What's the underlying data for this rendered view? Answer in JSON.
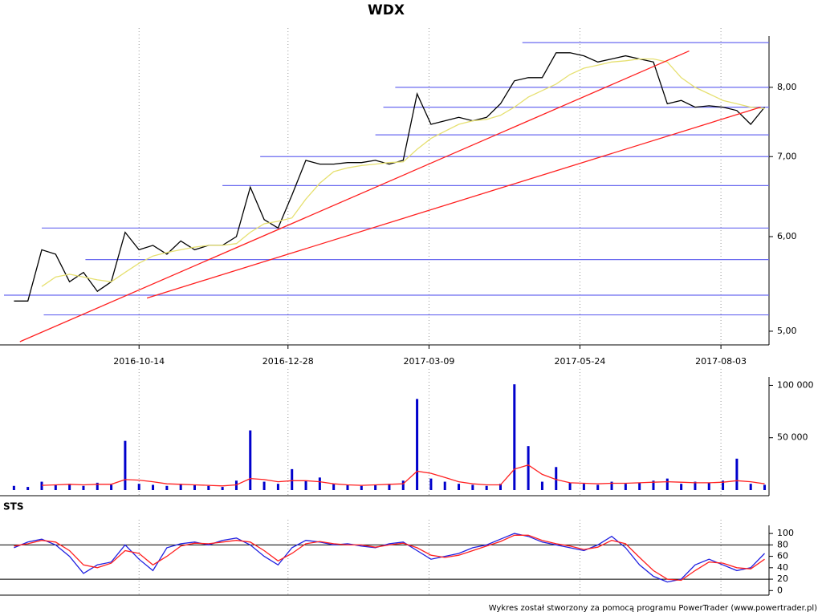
{
  "chart_data": [
    {
      "type": "line",
      "title": "WDX",
      "log": true,
      "x": [
        "2016-08-12",
        "2016-08-19",
        "2016-08-26",
        "2016-09-02",
        "2016-09-09",
        "2016-09-16",
        "2016-09-23",
        "2016-09-30",
        "2016-10-07",
        "2016-10-14",
        "2016-10-21",
        "2016-10-28",
        "2016-11-04",
        "2016-11-11",
        "2016-11-18",
        "2016-11-25",
        "2016-12-02",
        "2016-12-09",
        "2016-12-16",
        "2016-12-23",
        "2016-12-30",
        "2017-01-06",
        "2017-01-13",
        "2017-01-20",
        "2017-01-27",
        "2017-02-03",
        "2017-02-10",
        "2017-02-17",
        "2017-02-24",
        "2017-03-03",
        "2017-03-10",
        "2017-03-17",
        "2017-03-24",
        "2017-03-31",
        "2017-04-07",
        "2017-04-14",
        "2017-04-21",
        "2017-04-28",
        "2017-05-05",
        "2017-05-12",
        "2017-05-19",
        "2017-05-26",
        "2017-06-02",
        "2017-06-09",
        "2017-06-16",
        "2017-06-23",
        "2017-06-30",
        "2017-07-07",
        "2017-07-14",
        "2017-07-21",
        "2017-07-28",
        "2017-08-04",
        "2017-08-11",
        "2017-08-18",
        "2017-08-25"
      ],
      "series": [
        {
          "color": "#000000",
          "values": [
            5.3,
            5.3,
            5.85,
            5.8,
            5.5,
            5.6,
            5.4,
            5.5,
            6.05,
            5.85,
            5.9,
            5.8,
            5.95,
            5.85,
            5.9,
            5.9,
            6.0,
            6.6,
            6.2,
            6.1,
            6.5,
            6.95,
            6.9,
            6.9,
            6.92,
            6.92,
            6.95,
            6.9,
            6.95,
            7.9,
            7.45,
            7.5,
            7.55,
            7.5,
            7.55,
            7.75,
            8.1,
            8.15,
            8.15,
            8.55,
            8.55,
            8.5,
            8.4,
            8.45,
            8.5,
            8.45,
            8.4,
            7.75,
            7.8,
            7.7,
            7.72,
            7.7,
            7.65,
            7.45,
            7.7
          ]
        },
        {
          "color": "#e6e070",
          "values": [
            null,
            null,
            5.45,
            5.55,
            5.58,
            5.55,
            5.52,
            5.5,
            5.6,
            5.7,
            5.78,
            5.82,
            5.85,
            5.88,
            5.9,
            5.9,
            5.92,
            6.05,
            6.15,
            6.18,
            6.22,
            6.45,
            6.65,
            6.8,
            6.85,
            6.88,
            6.9,
            6.92,
            6.93,
            7.1,
            7.25,
            7.35,
            7.45,
            7.5,
            7.52,
            7.58,
            7.7,
            7.85,
            7.95,
            8.05,
            8.2,
            8.3,
            8.35,
            8.4,
            8.42,
            8.45,
            8.45,
            8.4,
            8.15,
            8.0,
            7.9,
            7.8,
            7.75,
            7.7,
            7.68
          ]
        }
      ],
      "xlim": [
        "2016-08-07",
        "2017-08-26"
      ],
      "xticks": [
        "2016-10-14",
        "2016-12-28",
        "2017-03-09",
        "2017-05-24",
        "2017-08-03"
      ],
      "ylim": [
        4.87,
        8.83
      ],
      "yticks": [
        {
          "value": 5,
          "label": "5,00"
        },
        {
          "value": 6,
          "label": "6,00"
        },
        {
          "value": 7,
          "label": "7,00"
        },
        {
          "value": 8,
          "label": "8,00"
        }
      ],
      "level_color": "#6a6af0",
      "levels": [
        {
          "value": 8.72,
          "from": "2017-04-25"
        },
        {
          "value": 8.0,
          "from": "2017-02-20"
        },
        {
          "value": 7.7,
          "from": "2017-02-14"
        },
        {
          "value": 7.3,
          "from": "2017-02-10"
        },
        {
          "value": 7.0,
          "from": "2016-12-14"
        },
        {
          "value": 6.62,
          "from": "2016-11-25"
        },
        {
          "value": 6.1,
          "from": "2016-08-26"
        },
        {
          "value": 5.74,
          "from": "2016-09-17"
        },
        {
          "value": 5.36,
          "from": "2016-08-07"
        },
        {
          "value": 5.16,
          "from": "2016-08-27"
        }
      ],
      "trend_color": "#ff2020",
      "trend_lines": [
        {
          "from": [
            "2016-08-15",
            4.9
          ],
          "to": [
            "2017-07-18",
            8.58
          ]
        },
        {
          "from": [
            "2016-10-18",
            5.33
          ],
          "to": [
            "2017-08-23",
            7.7
          ]
        }
      ]
    },
    {
      "type": "bar",
      "series": [
        {
          "color": "#0000cc",
          "values": [
            4000,
            3000,
            8000,
            5000,
            6000,
            4000,
            7000,
            5000,
            47000,
            6000,
            5000,
            4000,
            6000,
            5000,
            4000,
            3000,
            9000,
            57000,
            8000,
            6000,
            20000,
            9000,
            12000,
            6000,
            5000,
            4000,
            5000,
            6000,
            9000,
            87000,
            11000,
            8000,
            6000,
            5000,
            4000,
            6000,
            101000,
            42000,
            8000,
            22000,
            7000,
            6000,
            5000,
            8000,
            6000,
            7000,
            9000,
            11000,
            6000,
            8000,
            7000,
            9000,
            30000,
            6000,
            5000
          ]
        },
        {
          "color": "#ff2020",
          "values": [
            null,
            null,
            4500,
            5000,
            5500,
            5000,
            5500,
            5500,
            10000,
            9500,
            8000,
            6000,
            5500,
            5000,
            4500,
            4000,
            5000,
            11000,
            10000,
            8000,
            9000,
            9000,
            8000,
            6000,
            5000,
            4500,
            5000,
            5500,
            6000,
            18000,
            16000,
            12000,
            8000,
            6000,
            5000,
            5000,
            20000,
            24000,
            15000,
            10000,
            7000,
            6500,
            6000,
            6500,
            6500,
            7000,
            7500,
            8000,
            7500,
            7000,
            7000,
            7500,
            9000,
            8000,
            6000
          ]
        }
      ],
      "ylim": [
        0,
        108000
      ],
      "yticks": [
        {
          "value": 50000,
          "label": "50 000"
        },
        {
          "value": 100000,
          "label": "100 000"
        }
      ]
    },
    {
      "type": "line",
      "title": "STS",
      "series": [
        {
          "color": "#2020e0",
          "values": [
            75,
            85,
            90,
            80,
            60,
            30,
            45,
            50,
            80,
            55,
            35,
            75,
            82,
            85,
            80,
            88,
            92,
            80,
            60,
            45,
            75,
            88,
            85,
            80,
            82,
            78,
            75,
            82,
            85,
            70,
            55,
            60,
            65,
            75,
            80,
            90,
            100,
            95,
            85,
            80,
            75,
            70,
            80,
            95,
            75,
            45,
            25,
            15,
            20,
            45,
            55,
            45,
            35,
            40,
            65
          ]
        },
        {
          "color": "#ff2020",
          "values": [
            78,
            82,
            88,
            85,
            70,
            45,
            40,
            48,
            70,
            65,
            45,
            60,
            78,
            83,
            82,
            85,
            88,
            85,
            70,
            52,
            65,
            82,
            86,
            82,
            80,
            80,
            76,
            80,
            83,
            75,
            62,
            58,
            62,
            70,
            78,
            86,
            97,
            97,
            88,
            82,
            78,
            72,
            76,
            88,
            82,
            58,
            35,
            20,
            18,
            35,
            50,
            48,
            40,
            38,
            55
          ]
        }
      ],
      "ylim": [
        -8,
        110
      ],
      "yticks": [
        0,
        20,
        40,
        60,
        80,
        100
      ],
      "levels": [
        20,
        80
      ]
    }
  ],
  "footer": "Wykres został stworzony za pomocą programu PowerTrader (www.powertrader.pl)"
}
